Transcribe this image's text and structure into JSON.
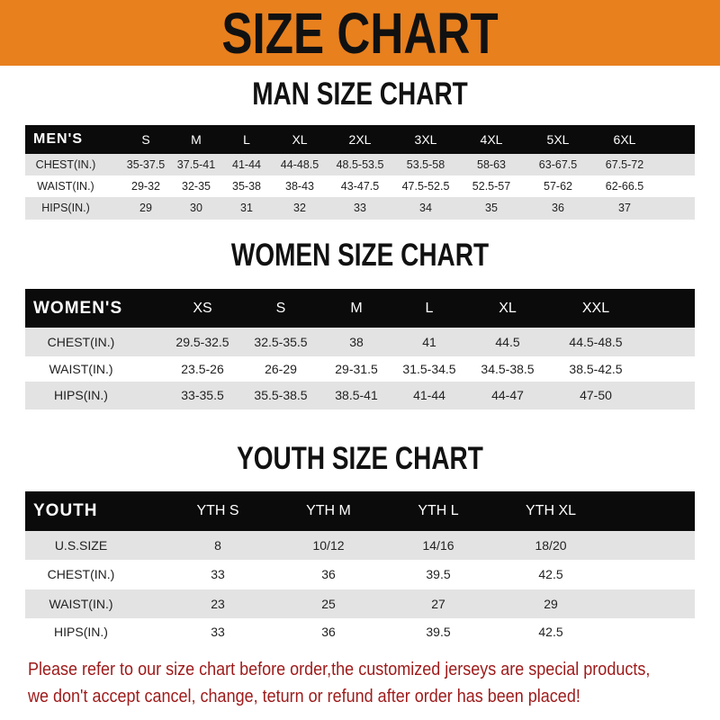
{
  "banner": {
    "title": "SIZE CHART",
    "color": "#e8801e"
  },
  "men": {
    "title": "MAN SIZE CHART",
    "header_label": "MEN'S",
    "columns": [
      "S",
      "M",
      "L",
      "XL",
      "2XL",
      "3XL",
      "4XL",
      "5XL",
      "6XL"
    ],
    "rows": [
      {
        "label": "CHEST(IN.)",
        "values": [
          "35-37.5",
          "37.5-41",
          "41-44",
          "44-48.5",
          "48.5-53.5",
          "53.5-58",
          "58-63",
          "63-67.5",
          "67.5-72"
        ]
      },
      {
        "label": "WAIST(IN.)",
        "values": [
          "29-32",
          "32-35",
          "35-38",
          "38-43",
          "43-47.5",
          "47.5-52.5",
          "52.5-57",
          "57-62",
          "62-66.5"
        ]
      },
      {
        "label": "HIPS(IN.)",
        "values": [
          "29",
          "30",
          "31",
          "32",
          "33",
          "34",
          "35",
          "36",
          "37"
        ]
      }
    ]
  },
  "women": {
    "title": "WOMEN SIZE CHART",
    "header_label": "WOMEN'S",
    "columns": [
      "XS",
      "S",
      "M",
      "L",
      "XL",
      "XXL"
    ],
    "rows": [
      {
        "label": "CHEST(IN.)",
        "values": [
          "29.5-32.5",
          "32.5-35.5",
          "38",
          "41",
          "44.5",
          "44.5-48.5"
        ]
      },
      {
        "label": "WAIST(IN.)",
        "values": [
          "23.5-26",
          "26-29",
          "29-31.5",
          "31.5-34.5",
          "34.5-38.5",
          "38.5-42.5"
        ]
      },
      {
        "label": "HIPS(IN.)",
        "values": [
          "33-35.5",
          "35.5-38.5",
          "38.5-41",
          "41-44",
          "44-47",
          "47-50"
        ]
      }
    ]
  },
  "youth": {
    "title": "YOUTH SIZE CHART",
    "header_label": "YOUTH",
    "columns": [
      "YTH S",
      "YTH M",
      "YTH L",
      "YTH XL"
    ],
    "rows": [
      {
        "label": "U.S.SIZE",
        "values": [
          "8",
          "10/12",
          "14/16",
          "18/20"
        ]
      },
      {
        "label": "CHEST(IN.)",
        "values": [
          "33",
          "36",
          "39.5",
          "42.5"
        ]
      },
      {
        "label": "WAIST(IN.)",
        "values": [
          "23",
          "25",
          "27",
          "29"
        ]
      },
      {
        "label": "HIPS(IN.)",
        "values": [
          "33",
          "36",
          "39.5",
          "42.5"
        ]
      }
    ]
  },
  "footer": {
    "line1": "Please refer to our size chart before order,the customized jerseys are special products,",
    "line2": "we don't accept cancel, change, teturn or refund after order has been placed!",
    "color": "#9e1a1a"
  }
}
